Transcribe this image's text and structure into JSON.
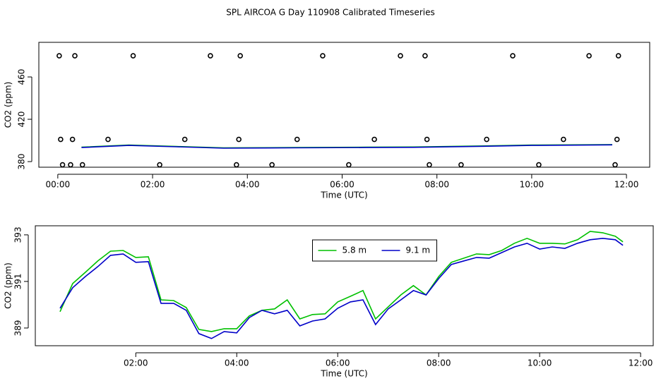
{
  "title": "SPL AIRCOA G  Day 110908  Calibrated Timeseries",
  "chart_data": [
    {
      "type": "line",
      "xlabel": "Time (UTC)",
      "ylabel": "CO2 (ppm)",
      "xlim": [
        -0.4,
        12.49
      ],
      "ylim": [
        374.7,
        492.7
      ],
      "xticks": [
        {
          "value": 0,
          "label": "00:00"
        },
        {
          "value": 2,
          "label": "02:00"
        },
        {
          "value": 4,
          "label": "04:00"
        },
        {
          "value": 6,
          "label": "06:00"
        },
        {
          "value": 8,
          "label": "08:00"
        },
        {
          "value": 10,
          "label": "10:00"
        },
        {
          "value": 12,
          "label": "12:00"
        }
      ],
      "yticks": [
        380,
        420,
        460
      ],
      "points": {
        "color": "#000000",
        "x": [
          0.03,
          0.36,
          1.59,
          3.22,
          3.85,
          5.59,
          7.23,
          7.75,
          9.6,
          11.21,
          11.83,
          0.06,
          0.31,
          1.06,
          2.68,
          3.82,
          5.05,
          6.68,
          7.79,
          9.05,
          10.67,
          11.8,
          0.1,
          0.27,
          0.52,
          2.15,
          3.77,
          4.52,
          6.14,
          7.84,
          8.51,
          10.15,
          11.76
        ],
        "y": [
          480,
          480,
          480,
          480,
          480,
          480,
          480,
          480,
          480,
          480,
          480,
          401,
          401,
          401,
          401,
          401,
          401,
          401,
          401,
          401,
          401,
          401,
          377,
          377,
          377,
          377,
          377,
          377,
          377,
          377,
          377,
          377,
          377
        ]
      },
      "series": [
        {
          "color": "#00c000",
          "x": [
            0.5,
            1.5,
            2.5,
            3.5,
            5,
            6.5,
            7.5,
            9,
            10,
            11.7
          ],
          "values": [
            393.6,
            395.6,
            394.3,
            393,
            393.3,
            393.6,
            393.8,
            394.8,
            395.6,
            396.1
          ]
        },
        {
          "color": "#0000c8",
          "x": [
            0.5,
            1.5,
            2.5,
            3.5,
            5,
            6.5,
            7.5,
            9,
            10,
            11.7
          ],
          "values": [
            393.3,
            395.3,
            394,
            392.7,
            393,
            393.3,
            393.5,
            394.5,
            395.3,
            395.8
          ]
        }
      ]
    },
    {
      "type": "line",
      "xlabel": "Time (UTC)",
      "ylabel": "CO2 (ppm)",
      "legend": "top",
      "xlim": [
        0.01,
        12.25
      ],
      "ylim": [
        388.24,
        393.39
      ],
      "xticks": [
        {
          "value": 2,
          "label": "02:00"
        },
        {
          "value": 4,
          "label": "04:00"
        },
        {
          "value": 6,
          "label": "06:00"
        },
        {
          "value": 8,
          "label": "08:00"
        },
        {
          "value": 10,
          "label": "10:00"
        },
        {
          "value": 12,
          "label": "12:00"
        }
      ],
      "yticks": [
        389,
        391,
        393
      ],
      "series": [
        {
          "name": "5.8 m",
          "color": "#00c000",
          "x": [
            0.5,
            0.75,
            1,
            1.25,
            1.5,
            1.75,
            2,
            2.25,
            2.5,
            2.75,
            3,
            3.25,
            3.5,
            3.75,
            4,
            4.25,
            4.5,
            4.75,
            5,
            5.25,
            5.5,
            5.75,
            6,
            6.25,
            6.5,
            6.75,
            7,
            7.25,
            7.5,
            7.75,
            8,
            8.25,
            8.5,
            8.75,
            9,
            9.25,
            9.5,
            9.75,
            10,
            10.25,
            10.5,
            10.75,
            11,
            11.25,
            11.5,
            11.65
          ],
          "values": [
            389.7,
            390.91,
            391.39,
            391.88,
            392.3,
            392.33,
            392.03,
            392.06,
            390.21,
            390.18,
            389.88,
            388.94,
            388.85,
            388.97,
            388.97,
            389.52,
            389.76,
            389.82,
            390.21,
            389.39,
            389.58,
            389.61,
            390.12,
            390.36,
            390.61,
            389.39,
            389.91,
            390.42,
            390.82,
            390.42,
            391.21,
            391.82,
            392,
            392.18,
            392.15,
            392.33,
            392.64,
            392.85,
            392.64,
            392.64,
            392.61,
            392.79,
            393.15,
            393.09,
            392.94,
            392.7
          ]
        },
        {
          "name": "9.1 m",
          "color": "#0000c8",
          "x": [
            0.5,
            0.75,
            1,
            1.25,
            1.5,
            1.75,
            2,
            2.25,
            2.5,
            2.75,
            3,
            3.25,
            3.5,
            3.75,
            4,
            4.25,
            4.5,
            4.75,
            5,
            5.25,
            5.5,
            5.75,
            6,
            6.25,
            6.5,
            6.75,
            7,
            7.25,
            7.5,
            7.75,
            8,
            8.25,
            8.5,
            8.75,
            9,
            9.25,
            9.5,
            9.75,
            10,
            10.25,
            10.5,
            10.75,
            11,
            11.25,
            11.5,
            11.65
          ],
          "values": [
            389.85,
            390.73,
            391.21,
            391.64,
            392.12,
            392.18,
            391.82,
            391.85,
            390.06,
            390.06,
            389.76,
            388.76,
            388.55,
            388.85,
            388.79,
            389.45,
            389.76,
            389.61,
            389.76,
            389.09,
            389.3,
            389.39,
            389.85,
            390.12,
            390.21,
            389.15,
            389.82,
            390.21,
            390.61,
            390.42,
            391.12,
            391.73,
            391.88,
            392.03,
            392,
            392.24,
            392.48,
            392.64,
            392.39,
            392.48,
            392.42,
            392.64,
            392.79,
            392.85,
            392.79,
            392.55
          ]
        }
      ]
    }
  ]
}
